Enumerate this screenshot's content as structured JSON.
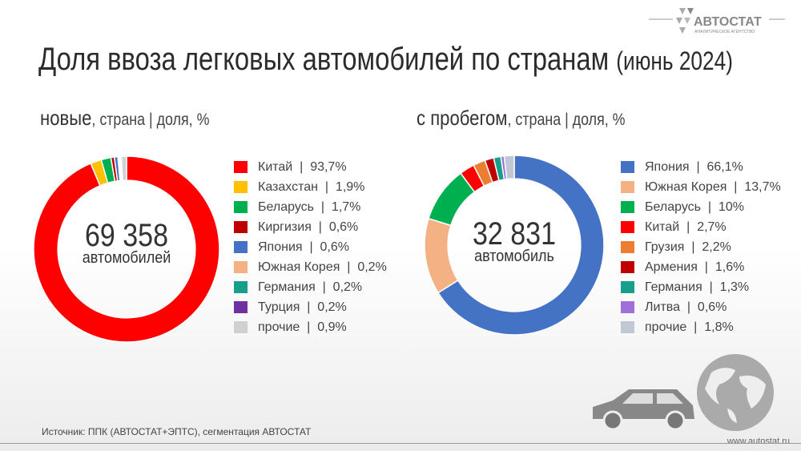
{
  "title": "Доля ввоза легковых автомобилей по странам",
  "title_period": "(июнь 2024)",
  "brand": {
    "name": "АВТОСТАТ",
    "tagline": "АНАЛИТИЧЕСКОЕ АГЕНТСТВО"
  },
  "footer": {
    "source": "Источник: ППК (АВТОСТАТ+ЭПТС), сегментация АВТОСТАТ",
    "url": "www.autostat.ru"
  },
  "chart_data": [
    {
      "type": "pie",
      "donut": true,
      "title": "новые",
      "subtitle": ", страна | доля, %",
      "center_value": "69 358",
      "center_label": "автомобилей",
      "categories": [
        "Китай",
        "Казахстан",
        "Беларусь",
        "Киргизия",
        "Япония",
        "Южная Корея",
        "Германия",
        "Турция",
        "прочие"
      ],
      "values": [
        93.7,
        1.9,
        1.7,
        0.6,
        0.6,
        0.2,
        0.2,
        0.2,
        0.9
      ],
      "labels": [
        "93,7%",
        "1,9%",
        "1,7%",
        "0,6%",
        "0,6%",
        "0,2%",
        "0,2%",
        "0,2%",
        "0,9%"
      ],
      "colors": [
        "#ff0000",
        "#ffc000",
        "#00b050",
        "#c00000",
        "#4472c4",
        "#f4b183",
        "#16a08c",
        "#7030a0",
        "#d0d0d0"
      ],
      "legend": "right"
    },
    {
      "type": "pie",
      "donut": true,
      "title": "с пробегом",
      "subtitle": ", страна | доля, %",
      "center_value": "32 831",
      "center_label": "автомобиль",
      "categories": [
        "Япония",
        "Южная Корея",
        "Беларусь",
        "Китай",
        "Грузия",
        "Армения",
        "Германия",
        "Литва",
        "прочие"
      ],
      "values": [
        66.1,
        13.7,
        10,
        2.7,
        2.2,
        1.6,
        1.3,
        0.6,
        1.8
      ],
      "labels": [
        "66,1%",
        "13,7%",
        "10%",
        "2,7%",
        "2,2%",
        "1,6%",
        "1,3%",
        "0,6%",
        "1,8%"
      ],
      "colors": [
        "#4472c4",
        "#f4b183",
        "#00b050",
        "#ff0000",
        "#ed7d31",
        "#c00000",
        "#16a08c",
        "#a070d8",
        "#c0c8d4"
      ],
      "legend": "right"
    }
  ]
}
